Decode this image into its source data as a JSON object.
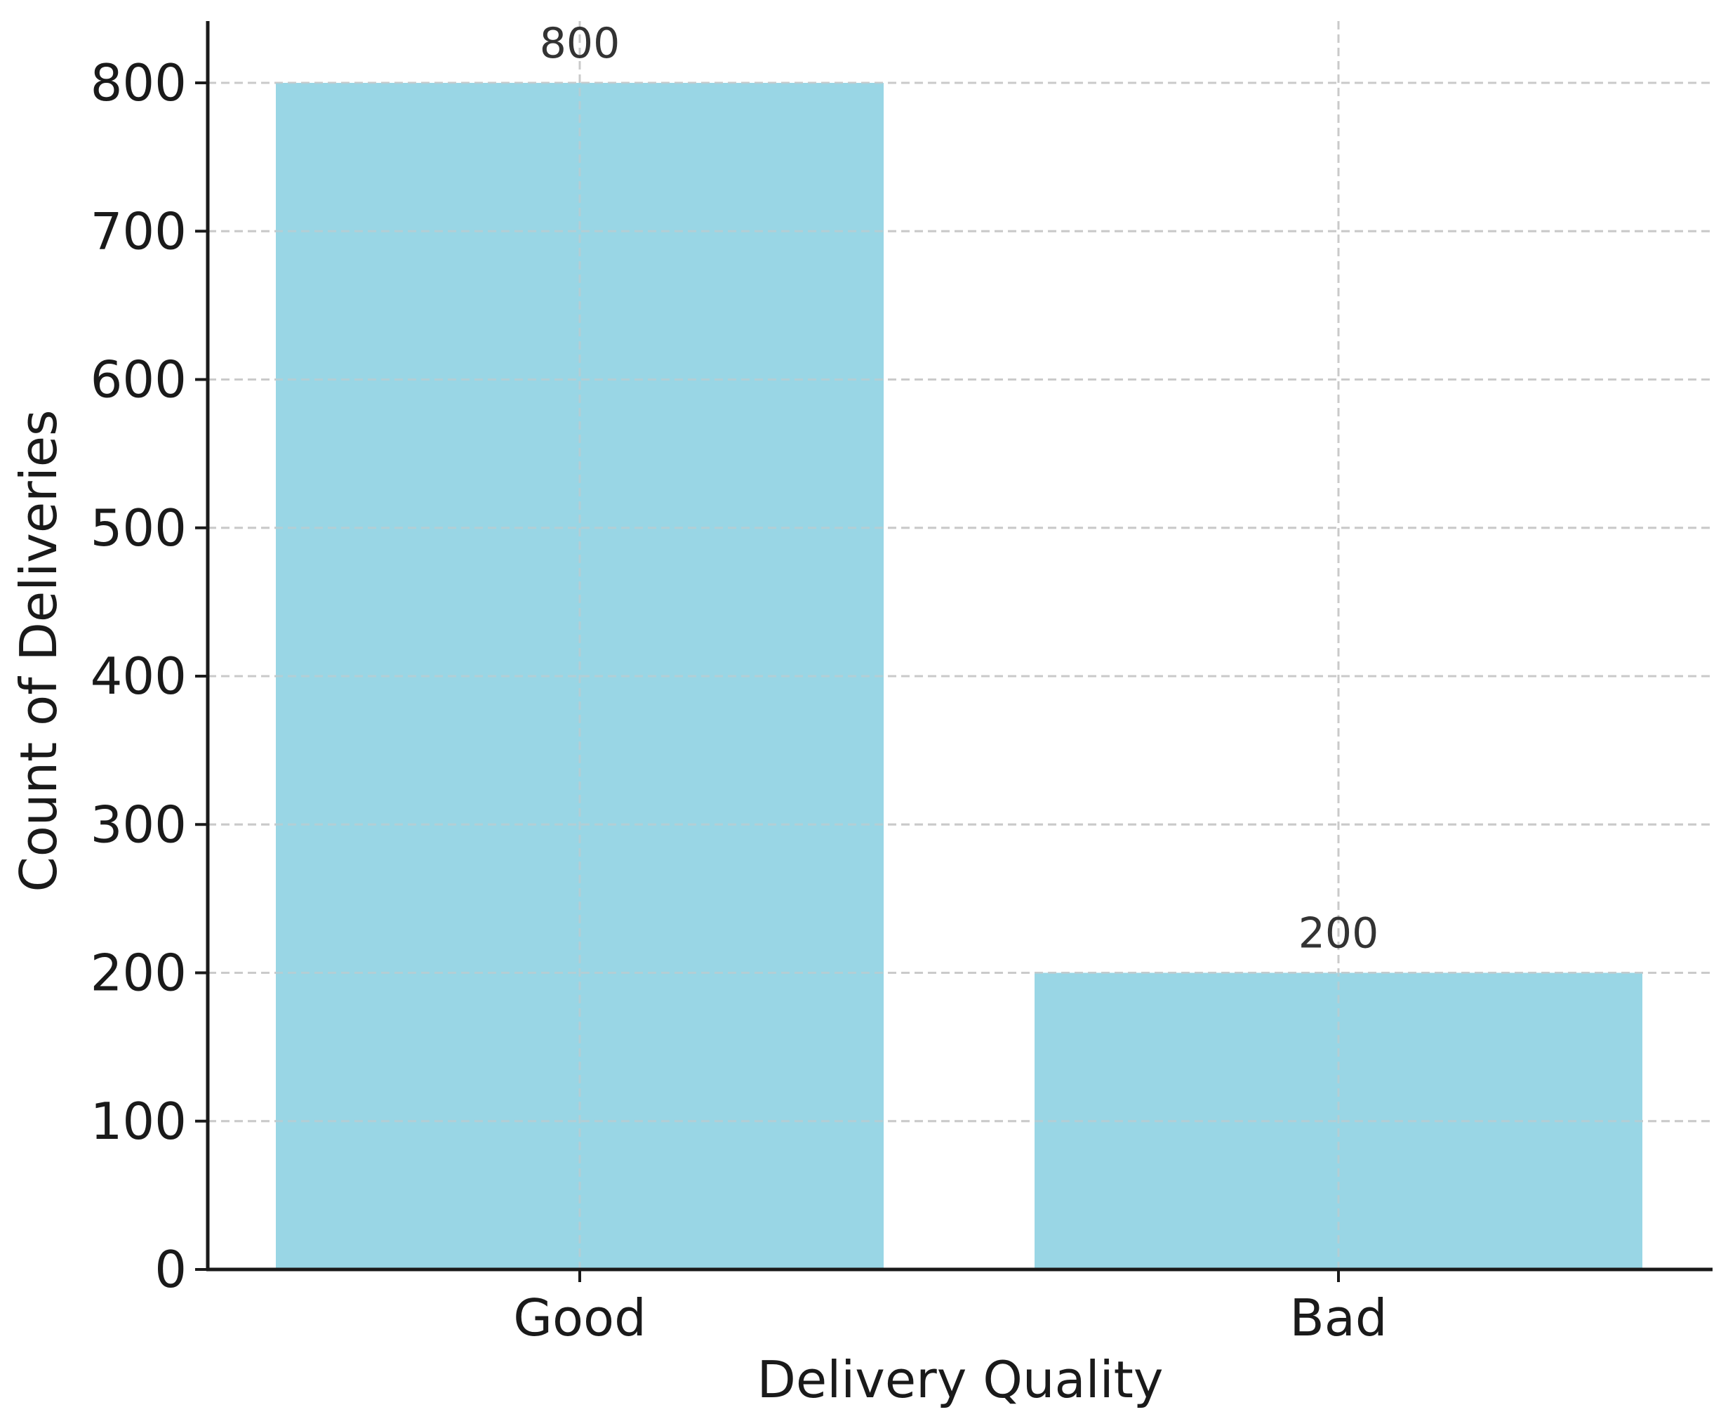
{
  "chart_data": {
    "type": "bar",
    "categories": [
      "Good",
      "Bad"
    ],
    "values": [
      800,
      200
    ],
    "data_labels": [
      "800",
      "200"
    ],
    "title": "",
    "xlabel": "Delivery Quality",
    "ylabel": "Count of Deliveries",
    "ylim": [
      0,
      840
    ],
    "yticks": [
      0,
      100,
      200,
      300,
      400,
      500,
      600,
      700,
      800
    ],
    "grid": true,
    "grid_style": "dashed",
    "bar_color": "#99d6e5",
    "grid_color": "#cccccc",
    "axis_color": "#1a1a1a"
  }
}
